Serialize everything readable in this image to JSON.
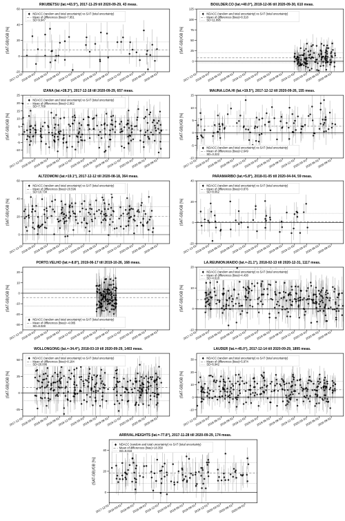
{
  "global": {
    "ylabel": "(SAT-GB)/GB [%]",
    "xticks": [
      "2017-12-01",
      "2018-03-01",
      "2018-06-01",
      "2018-09-01",
      "2018-12-01",
      "2019-03-01",
      "2019-06-01",
      "2019-09-01",
      "2019-12-01",
      "2020-03-01",
      "2020-06-01",
      "2020-09-01"
    ],
    "legend_line1": "NDACC (random and total uncertainty) vs SAT (total uncertainty)",
    "bias_label_prefix": "Mean of differences (bias)=",
    "sd_label_prefix": "SD=",
    "colors": {
      "background": "#ffffff",
      "marker": "#000000",
      "zero_line": "#000000",
      "bias_line": "#707070",
      "sd_line": "#a0a0a0",
      "grid": "#e8e8e8",
      "axis": "#000000"
    },
    "font_family": "Arial",
    "title_fontsize": 5,
    "label_fontsize": 5,
    "tick_fontsize": 4,
    "marker_size": 1.2,
    "error_cap_width": 1.0,
    "line_widths": {
      "axis": 0.6,
      "zero": 0.6,
      "bias_dash": "3,2",
      "sd_dash": "1,1"
    }
  },
  "panels": [
    {
      "i": 0,
      "title": "RIKUBETSU (lat.=43.5°), 2017-11-29 till 2020-09-29, 43 meas.",
      "bias": 7.951,
      "sd": 9.947,
      "ylim": [
        -20,
        60
      ],
      "yticks": [
        -20,
        0,
        20,
        40,
        60
      ],
      "xrange": [
        0,
        33
      ],
      "legend_pos": "top",
      "n": 43,
      "spread": 18,
      "cluster": null
    },
    {
      "i": 1,
      "title": "BOULDER.CO (lat.=40.0°), 2019-12-06 till 2020-09-30, 610 meas.",
      "bias": 8.318,
      "sd": 11.895,
      "ylim": [
        -25,
        125
      ],
      "yticks": [
        0,
        25,
        50,
        75,
        100,
        125
      ],
      "xrange": [
        24,
        34
      ],
      "legend_pos": "top",
      "n": 120,
      "spread": 22,
      "cluster": null
    },
    {
      "i": 2,
      "title": "IZANA (lat.=28.3°), 2017-12-18 till 2020-09-29, 657 meas.",
      "bias": 2.962,
      "sd": 7.709,
      "ylim": [
        -15,
        25
      ],
      "yticks": [
        -10,
        -5,
        0,
        5,
        10,
        15,
        20,
        25
      ],
      "xrange": [
        0,
        34
      ],
      "legend_pos": "top",
      "n": 200,
      "spread": 9,
      "cluster": null
    },
    {
      "i": 3,
      "title": "MAUNA.LOA.HI (lat.=19.5°), 2017-12-12 till 2020-09-26, 155 meas.",
      "bias": 2.649,
      "sd": 3.222,
      "ylim": [
        -10,
        15
      ],
      "yticks": [
        -10,
        -5,
        0,
        5,
        10,
        15
      ],
      "xrange": [
        0,
        34
      ],
      "legend_pos": "bot",
      "n": 100,
      "spread": 5,
      "cluster": null
    },
    {
      "i": 4,
      "title": "ALTZOMONI (lat.=19.1°), 2017-12-12 till 2020-08-18, 364 meas.",
      "bias": 20.596,
      "sd": 10.734,
      "ylim": [
        -10,
        60
      ],
      "yticks": [
        0,
        20,
        40,
        60
      ],
      "xrange": [
        0,
        32
      ],
      "legend_pos": "top",
      "n": 180,
      "spread": 14,
      "cluster": null
    },
    {
      "i": 5,
      "title": "PARAMARIBO (lat.=5.8°), 2018-01-05 till 2020-04-04, 59 meas.",
      "bias": 0.876,
      "sd": 8.062,
      "ylim": [
        -20,
        40
      ],
      "yticks": [
        -20,
        0,
        20,
        40
      ],
      "xrange": [
        1,
        28
      ],
      "legend_pos": "top",
      "n": 45,
      "spread": 12,
      "cluster": null
    },
    {
      "i": 6,
      "title": "PORTO.VELHO (lat.=-8.8°), 2019-06-17 till 2019-10-26, 168 meas.",
      "bias": -4.085,
      "sd": 8.028,
      "ylim": [
        -35,
        25
      ],
      "yticks": [
        -30,
        -20,
        -10,
        0,
        10,
        20
      ],
      "xrange": [
        18,
        23
      ],
      "legend_pos": "bot",
      "n": 120,
      "spread": 14,
      "cluster": [
        18,
        23
      ]
    },
    {
      "i": 7,
      "title": "LA.REUNION.MAIDO (lat.=-21.1°), 2018-02-13 till 2020-12-31, 1117 meas.",
      "bias": 4.438,
      "sd": 4.618,
      "ylim": [
        -10,
        20
      ],
      "yticks": [
        -10,
        0,
        10,
        20
      ],
      "xrange": [
        2,
        36
      ],
      "legend_pos": "top",
      "n": 260,
      "spread": 7,
      "cluster": null
    },
    {
      "i": 8,
      "title": "WOLLONGONG (lat.=-34.4°), 2018-03-19 till 2020-09-29, 1403 meas.",
      "bias": 8.184,
      "sd": 20.006,
      "ylim": [
        -35,
        60
      ],
      "yticks": [
        -25,
        0,
        25,
        50
      ],
      "xrange": [
        3,
        34
      ],
      "legend_pos": "top",
      "n": 260,
      "spread": 22,
      "cluster": null
    },
    {
      "i": 9,
      "title": "LAUDER (lat.=-45.0°), 2017-12-14 till 2020-09-29, 1895 meas.",
      "bias": 5.974,
      "sd": 6.942,
      "ylim": [
        -15,
        35
      ],
      "yticks": [
        -10,
        0,
        10,
        20,
        30
      ],
      "xrange": [
        0,
        34
      ],
      "legend_pos": "top",
      "n": 260,
      "spread": 9,
      "cluster": null
    },
    {
      "i": 10,
      "title": "ARRIVAL.HEIGHTS (lat.=-77.8°), 2017-11-28 till 2020-09-29, 174 meas.",
      "bias": 18.358,
      "sd": 9.816,
      "ylim": [
        -10,
        50
      ],
      "yticks": [
        0,
        20,
        40
      ],
      "xrange": [
        0,
        34
      ],
      "legend_pos": "top",
      "n": 110,
      "spread": 13,
      "cluster": null
    }
  ]
}
